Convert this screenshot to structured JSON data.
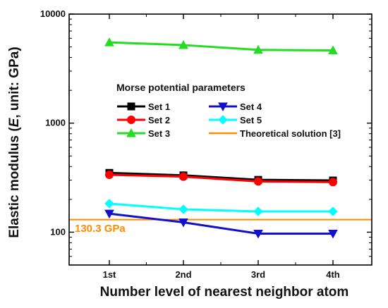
{
  "chart_data": {
    "type": "line",
    "y_scale": "log",
    "xlabel": "Number level of nearest neighbor atom",
    "ylabel_prefix": "Elastic modulus (",
    "ylabel_var": "E",
    "ylabel_suffix": ", unit: GPa)",
    "categories": [
      "1st",
      "2nd",
      "3rd",
      "4th"
    ],
    "y_ticks": [
      {
        "value": 100,
        "label": "100"
      },
      {
        "value": 1000,
        "label": "1000"
      },
      {
        "value": 10000,
        "label": "10000"
      }
    ],
    "ylim": [
      50,
      10000
    ],
    "legend_title": "Morse potential parameters",
    "legend_placement": "center",
    "series": [
      {
        "name": "Set 1",
        "color": "#000000",
        "marker": "square",
        "values": [
          350,
          332,
          302,
          298
        ]
      },
      {
        "name": "Set 2",
        "color": "#ff0000",
        "marker": "circle",
        "values": [
          336,
          323,
          292,
          288
        ]
      },
      {
        "name": "Set 3",
        "color": "#22dd22",
        "marker": "triangle-up",
        "values": [
          5500,
          5200,
          4700,
          4650
        ]
      },
      {
        "name": "Set 4",
        "color": "#1111cc",
        "marker": "triangle-down",
        "values": [
          148,
          123,
          97,
          97
        ]
      },
      {
        "name": "Set 5",
        "color": "#00ffff",
        "marker": "diamond",
        "values": [
          183,
          162,
          155,
          155
        ]
      }
    ],
    "reference_line": {
      "name": "Theoretical solution [3]",
      "value": 130.3,
      "label": "130.3 GPa",
      "color": "#ff8c00"
    }
  }
}
